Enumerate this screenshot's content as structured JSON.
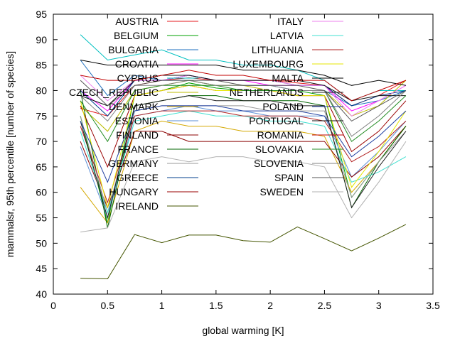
{
  "chart_data": {
    "type": "line",
    "title": "",
    "xlabel": "global warming [K]",
    "ylabel": "mammalsr, 95th percentile [number of species]",
    "xlim": [
      0,
      3.5
    ],
    "ylim": [
      40,
      95
    ],
    "xticks": [
      "0",
      "0.5",
      "1",
      "1.5",
      "2",
      "2.5",
      "3",
      "3.5"
    ],
    "yticks": [
      "40",
      "45",
      "50",
      "55",
      "60",
      "65",
      "70",
      "75",
      "80",
      "85",
      "90",
      "95"
    ],
    "grid": false,
    "legend_position": "top, two columns",
    "x": [
      0.25,
      0.5,
      0.75,
      1.0,
      1.25,
      1.5,
      1.75,
      2.0,
      2.25,
      2.5,
      2.75,
      3.0,
      3.25
    ],
    "series": [
      {
        "name": "AUSTRIA",
        "color": "#e41a1c",
        "values": [
          76.5,
          75,
          81,
          82,
          82.5,
          82,
          82,
          82,
          81.5,
          81,
          77,
          79,
          82
        ]
      },
      {
        "name": "BELGIUM",
        "color": "#00a000",
        "values": [
          75,
          54,
          79,
          80,
          81.5,
          80.5,
          80,
          80,
          80,
          79,
          59,
          66,
          73
        ]
      },
      {
        "name": "BULGARIA",
        "color": "#1e6fbf",
        "values": [
          86,
          79,
          83,
          82,
          82,
          81,
          81,
          81,
          80,
          80,
          77,
          78,
          80
        ]
      },
      {
        "name": "CROATIA",
        "color": "#ff00ff",
        "values": [
          80,
          76,
          82,
          82,
          83,
          82,
          82,
          81,
          81,
          81,
          76,
          78,
          81
        ]
      },
      {
        "name": "CYPRUS",
        "color": "#00c0c0",
        "values": [
          91,
          86,
          87,
          88,
          86,
          86,
          85,
          85,
          84,
          82,
          78,
          80,
          80
        ]
      },
      {
        "name": "CZECH_REPUBLIC",
        "color": "#bcbc00",
        "values": [
          77,
          72,
          80,
          81,
          82,
          81,
          81,
          80,
          80,
          80,
          75,
          77,
          82
        ]
      },
      {
        "name": "DENMARK",
        "color": "#d4a800",
        "values": [
          61,
          54,
          72,
          74,
          73,
          73,
          72,
          72,
          72,
          71,
          60,
          66,
          73
        ]
      },
      {
        "name": "ESTONIA",
        "color": "#5b8fd6",
        "values": [
          69,
          55,
          75,
          76,
          77,
          76,
          76,
          75,
          75,
          75,
          63,
          68,
          74
        ]
      },
      {
        "name": "FINLAND",
        "color": "#8b0000",
        "values": [
          70,
          57,
          72,
          72,
          70,
          70,
          70,
          70,
          70,
          70,
          63,
          67,
          73
        ]
      },
      {
        "name": "FRANCE",
        "color": "#006400",
        "values": [
          80,
          53,
          77,
          78,
          79,
          79,
          78,
          78,
          78,
          77,
          57,
          66,
          73
        ]
      },
      {
        "name": "GERMANY",
        "color": "#999999",
        "values": [
          75,
          56,
          76,
          77,
          77,
          77,
          77,
          76,
          76,
          76,
          59,
          66,
          72
        ]
      },
      {
        "name": "GREECE",
        "color": "#003f8c",
        "values": [
          80,
          75,
          82,
          82,
          83,
          82,
          82,
          82,
          81,
          81,
          77,
          79,
          80
        ]
      },
      {
        "name": "HUNGARY",
        "color": "#990000",
        "values": [
          77,
          65,
          79,
          80,
          81,
          80,
          80,
          80,
          79,
          79,
          68,
          72,
          78
        ]
      },
      {
        "name": "IRELAND",
        "color": "#445500",
        "values": [
          43.1,
          43,
          51.7,
          50.1,
          51.6,
          51.6,
          50.5,
          50.2,
          53.2,
          50.9,
          48.5,
          51,
          53.7
        ]
      },
      {
        "name": "ITALY",
        "color": "#ee82ee",
        "values": [
          83,
          78,
          82,
          82,
          83,
          82,
          82,
          82,
          81,
          81,
          75,
          78,
          81
        ]
      },
      {
        "name": "LATVIA",
        "color": "#40e0d0",
        "values": [
          72,
          56,
          74,
          75,
          76,
          75,
          75,
          74,
          74,
          73,
          62,
          64,
          67
        ]
      },
      {
        "name": "LITHUANIA",
        "color": "#b22222",
        "values": [
          73,
          58,
          75,
          76,
          76,
          76,
          75,
          75,
          75,
          74,
          66,
          69,
          74
        ]
      },
      {
        "name": "LUXEMBOURG",
        "color": "#e6e600",
        "values": [
          78,
          57,
          79,
          80,
          81,
          80,
          80,
          80,
          79,
          79,
          61,
          68,
          76
        ]
      },
      {
        "name": "MALTA",
        "color": "#000000",
        "values": [
          86,
          85,
          85,
          85,
          85,
          85,
          84,
          84,
          84,
          83,
          81,
          82,
          81
        ]
      },
      {
        "name": "NETHERLANDS",
        "color": "#222222",
        "values": [
          74,
          55,
          77,
          78,
          79,
          78,
          78,
          78,
          77,
          77,
          57,
          65,
          72
        ]
      },
      {
        "name": "POLAND",
        "color": "#1f3fa0",
        "values": [
          74,
          62,
          76,
          77,
          77,
          77,
          76,
          76,
          76,
          75,
          67,
          71,
          76
        ]
      },
      {
        "name": "PORTUGAL",
        "color": "#111111",
        "values": [
          79,
          77,
          82,
          83,
          83,
          82,
          82,
          82,
          82,
          81,
          78,
          79,
          79
        ]
      },
      {
        "name": "ROMANIA",
        "color": "#c00000",
        "values": [
          83,
          82,
          82,
          83,
          84,
          83,
          83,
          82,
          82,
          82,
          78,
          80,
          82
        ]
      },
      {
        "name": "SLOVAKIA",
        "color": "#228b22",
        "values": [
          78,
          70,
          80,
          81,
          81,
          81,
          80,
          80,
          80,
          80,
          70,
          74,
          79
        ]
      },
      {
        "name": "SLOVENIA",
        "color": "#808080",
        "values": [
          79,
          74,
          81,
          81,
          82,
          81,
          81,
          81,
          80,
          80,
          71,
          75,
          80
        ]
      },
      {
        "name": "SPAIN",
        "color": "#555555",
        "values": [
          82,
          77,
          81,
          82,
          82,
          82,
          81,
          81,
          81,
          80,
          74,
          77,
          80
        ]
      },
      {
        "name": "SWEDEN",
        "color": "#b0b0b0",
        "values": [
          52.2,
          53,
          66,
          67,
          66,
          67,
          67,
          66,
          66,
          65,
          55,
          62,
          70
        ]
      }
    ]
  }
}
